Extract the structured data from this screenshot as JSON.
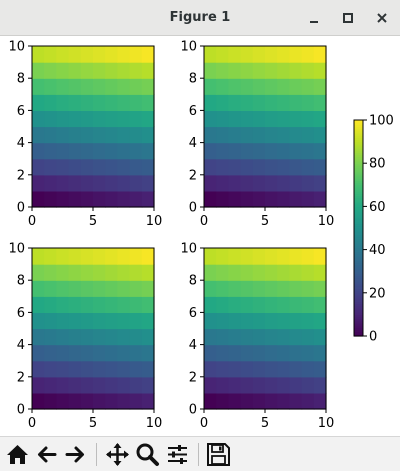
{
  "window": {
    "title": "Figure 1"
  },
  "window_buttons": [
    {
      "name": "minimize-button",
      "icon": "minimize-icon"
    },
    {
      "name": "maximize-button",
      "icon": "maximize-icon"
    },
    {
      "name": "close-button",
      "icon": "close-icon"
    }
  ],
  "toolbar": {
    "buttons": [
      {
        "name": "home-button",
        "icon": "home-icon"
      },
      {
        "name": "back-button",
        "icon": "back-arrow-icon"
      },
      {
        "name": "forward-button",
        "icon": "forward-arrow-icon"
      },
      {
        "name": "pan-button",
        "icon": "pan-move-icon"
      },
      {
        "name": "zoom-button",
        "icon": "zoom-magnifier-icon"
      },
      {
        "name": "configure-subplots-button",
        "icon": "sliders-icon"
      },
      {
        "name": "save-button",
        "icon": "save-floppy-icon"
      }
    ]
  },
  "chart_data": {
    "type": "heatmap",
    "layout": "2x2 subplots with shared colorbar",
    "colormap": "viridis",
    "colorbar": {
      "range": [
        0,
        100
      ],
      "ticks": [
        "0",
        "20",
        "40",
        "60",
        "80",
        "100"
      ]
    },
    "subplots": [
      {
        "xlim": [
          0,
          10
        ],
        "ylim": [
          0,
          10
        ],
        "xticks": [
          "0",
          "5",
          "10"
        ],
        "yticks": [
          "0",
          "2",
          "4",
          "6",
          "8",
          "10"
        ],
        "rows": 10,
        "cols": 10,
        "values_description": "value = 10*row + col, increasing upward and rightward",
        "value_range": [
          0,
          99
        ]
      },
      {
        "xlim": [
          0,
          10
        ],
        "ylim": [
          0,
          10
        ],
        "xticks": [
          "0",
          "5",
          "10"
        ],
        "yticks": [
          "0",
          "2",
          "4",
          "6",
          "8",
          "10"
        ],
        "rows": 10,
        "cols": 10,
        "value_range": [
          0,
          99
        ]
      },
      {
        "xlim": [
          0,
          10
        ],
        "ylim": [
          0,
          10
        ],
        "xticks": [
          "0",
          "5",
          "10"
        ],
        "yticks": [
          "0",
          "2",
          "4",
          "6",
          "8",
          "10"
        ],
        "rows": 10,
        "cols": 10,
        "value_range": [
          0,
          99
        ]
      },
      {
        "xlim": [
          0,
          10
        ],
        "ylim": [
          0,
          10
        ],
        "xticks": [
          "0",
          "5",
          "10"
        ],
        "yticks": [
          "0",
          "2",
          "4",
          "6",
          "8",
          "10"
        ],
        "rows": 10,
        "cols": 10,
        "value_range": [
          0,
          99
        ]
      }
    ]
  }
}
